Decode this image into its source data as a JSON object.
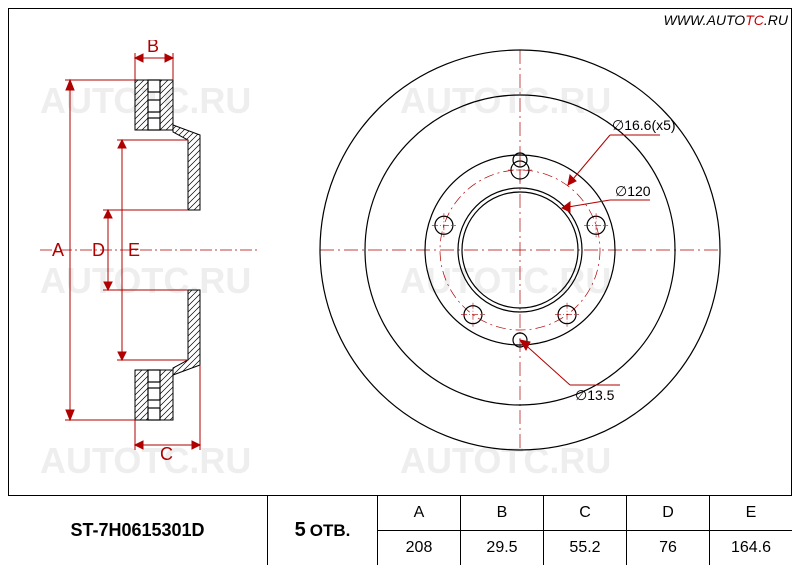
{
  "url": {
    "prefix": "WWW.",
    "auto": "AUTO",
    "tc": "TC",
    "suffix": ".RU"
  },
  "watermark_text": "AUTOTC.RU",
  "part_number": "ST-7H0615301D",
  "holes": {
    "count": "5",
    "label": "ОТВ."
  },
  "bolt_hole_dia": "∅16.6(x5)",
  "hub_dia": "∅120",
  "small_hole_dia": "∅13.5",
  "dim_letters": {
    "A": "A",
    "B": "B",
    "C": "C",
    "D": "D",
    "E": "E"
  },
  "dimensions": {
    "columns": [
      "A",
      "B",
      "C",
      "D",
      "E"
    ],
    "values": [
      "208",
      "29.5",
      "55.2",
      "76",
      "164.6"
    ]
  },
  "colors": {
    "dimension": "#b00000",
    "outline": "#000000",
    "watermark": "#eeeeee",
    "bg": "#ffffff"
  },
  "disc": {
    "outer_r": 200,
    "inner_ring_r": 155,
    "hub_outer_r": 95,
    "hub_bore_r": 62,
    "bolt_circle_r": 80,
    "bolt_hole_r": 9,
    "small_hole_r": 7
  }
}
